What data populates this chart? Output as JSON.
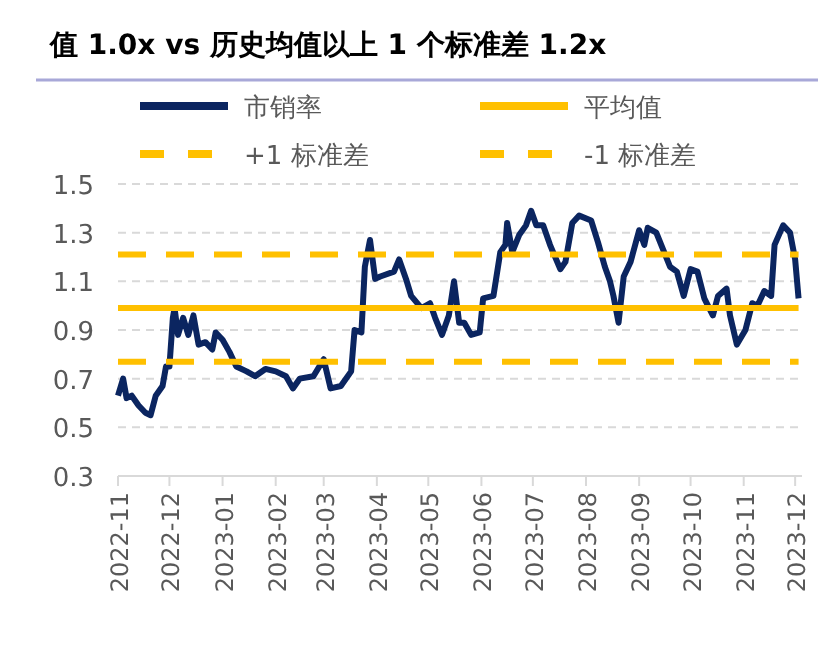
{
  "chart_data": {
    "type": "line",
    "title": "值 1.0x vs  历史均值以上 1 个标准差 1.2x",
    "xlim": [
      "2022-11-01",
      "2023-12-05"
    ],
    "xticks": [
      "2022-11",
      "2022-12",
      "2023-01",
      "2023-02",
      "2023-03",
      "2023-04",
      "2023-05",
      "2023-06",
      "2023-07",
      "2023-08",
      "2023-09",
      "2023-10",
      "2023-11",
      "2023-12"
    ],
    "ylim": [
      0.3,
      1.5
    ],
    "yticks": [
      0.3,
      0.5,
      0.7,
      0.9,
      1.1,
      1.3,
      1.5
    ],
    "grid": "y",
    "legend": "top",
    "marker": "none",
    "series": [
      {
        "name": "市销率",
        "color": "#0b2560",
        "line_style": "solid",
        "x": [
          "2022-11-01",
          "2022-11-04",
          "2022-11-06",
          "2022-11-09",
          "2022-11-13",
          "2022-11-17",
          "2022-11-20",
          "2022-11-23",
          "2022-11-27",
          "2022-11-29",
          "2022-12-01",
          "2022-12-03",
          "2022-12-04",
          "2022-12-06",
          "2022-12-09",
          "2022-12-12",
          "2022-12-15",
          "2022-12-18",
          "2022-12-22",
          "2022-12-26",
          "2022-12-28",
          "2023-01-01",
          "2023-01-05",
          "2023-01-09",
          "2023-01-15",
          "2023-01-20",
          "2023-01-26",
          "2023-02-01",
          "2023-02-07",
          "2023-02-11",
          "2023-02-15",
          "2023-02-23",
          "2023-03-01",
          "2023-03-05",
          "2023-03-11",
          "2023-03-17",
          "2023-03-19",
          "2023-03-23",
          "2023-03-25",
          "2023-03-28",
          "2023-03-31",
          "2023-04-03",
          "2023-04-11",
          "2023-04-14",
          "2023-04-18",
          "2023-04-21",
          "2023-04-27",
          "2023-05-02",
          "2023-05-05",
          "2023-05-09",
          "2023-05-13",
          "2023-05-16",
          "2023-05-19",
          "2023-05-22",
          "2023-05-26",
          "2023-05-31",
          "2023-06-02",
          "2023-06-08",
          "2023-06-12",
          "2023-06-15",
          "2023-06-16",
          "2023-06-19",
          "2023-06-23",
          "2023-06-27",
          "2023-06-30",
          "2023-07-03",
          "2023-07-07",
          "2023-07-11",
          "2023-07-17",
          "2023-07-20",
          "2023-07-24",
          "2023-07-28",
          "2023-08-04",
          "2023-08-08",
          "2023-08-12",
          "2023-08-15",
          "2023-08-17",
          "2023-08-20",
          "2023-08-23",
          "2023-08-27",
          "2023-09-01",
          "2023-09-04",
          "2023-09-06",
          "2023-09-11",
          "2023-09-15",
          "2023-09-19",
          "2023-09-23",
          "2023-09-27",
          "2023-10-01",
          "2023-10-05",
          "2023-10-09",
          "2023-10-14",
          "2023-10-17",
          "2023-10-22",
          "2023-10-24",
          "2023-10-28",
          "2023-11-02",
          "2023-11-06",
          "2023-11-09",
          "2023-11-13",
          "2023-11-17",
          "2023-11-19",
          "2023-11-24",
          "2023-11-28",
          "2023-12-01",
          "2023-12-03"
        ],
        "values": [
          0.63,
          0.7,
          0.62,
          0.63,
          0.59,
          0.56,
          0.55,
          0.63,
          0.67,
          0.75,
          0.75,
          0.95,
          0.99,
          0.88,
          0.95,
          0.88,
          0.96,
          0.84,
          0.85,
          0.82,
          0.89,
          0.86,
          0.81,
          0.75,
          0.73,
          0.71,
          0.74,
          0.73,
          0.71,
          0.66,
          0.7,
          0.71,
          0.78,
          0.66,
          0.67,
          0.73,
          0.9,
          0.89,
          1.16,
          1.27,
          1.11,
          1.12,
          1.14,
          1.19,
          1.11,
          1.04,
          0.99,
          1.01,
          0.95,
          0.88,
          0.96,
          1.1,
          0.93,
          0.93,
          0.88,
          0.89,
          1.03,
          1.04,
          1.22,
          1.25,
          1.34,
          1.22,
          1.29,
          1.33,
          1.39,
          1.33,
          1.33,
          1.25,
          1.15,
          1.18,
          1.34,
          1.37,
          1.35,
          1.26,
          1.16,
          1.1,
          1.04,
          0.93,
          1.12,
          1.18,
          1.31,
          1.25,
          1.32,
          1.3,
          1.23,
          1.16,
          1.14,
          1.04,
          1.15,
          1.14,
          1.03,
          0.96,
          1.04,
          1.07,
          0.96,
          0.84,
          0.9,
          1.01,
          1.0,
          1.06,
          1.04,
          1.25,
          1.33,
          1.3,
          1.19,
          1.03
        ]
      },
      {
        "name": "平均值",
        "color": "#ffc000",
        "line_style": "solid",
        "x": [
          "2022-11-01",
          "2023-12-03"
        ],
        "values": [
          0.99,
          0.99
        ]
      },
      {
        "name": "+1 标准差",
        "color": "#ffc000",
        "line_style": "dashed",
        "x": [
          "2022-11-01",
          "2023-12-03"
        ],
        "values": [
          1.21,
          1.21
        ]
      },
      {
        "name": "-1 标准差",
        "color": "#ffc000",
        "line_style": "dashed",
        "x": [
          "2022-11-01",
          "2023-12-03"
        ],
        "values": [
          0.77,
          0.77
        ]
      }
    ]
  }
}
